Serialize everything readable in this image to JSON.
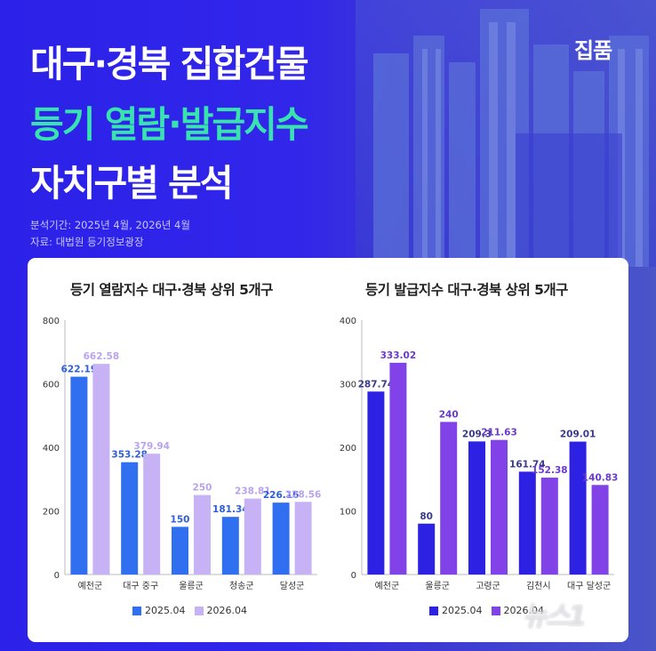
{
  "header": {
    "title_line1": "대구·경북 집합건물",
    "title_line2": "등기 열람·발급지수",
    "title_line3": "자치구별 분석",
    "brand": "집품",
    "period": "분석기간: 2025년 4월, 2026년 4월",
    "source": "자료: 대법원 등기정보광장",
    "watermark": "뉴스1"
  },
  "colors": {
    "title": "#ffffff",
    "title_accent": "#39e3b0",
    "left_2025": "#2f6ff0",
    "left_2026": "#c7b2f5",
    "right_2025": "#2d22e3",
    "right_2026": "#8142e8"
  },
  "chart_data": [
    {
      "type": "bar",
      "title": "등기 열람지수 대구·경북 상위 5개구",
      "categories": [
        "예천군",
        "대구 중구",
        "울릉군",
        "청송군",
        "달성군"
      ],
      "series": [
        {
          "name": "2025.04",
          "values": [
            622.19,
            353.28,
            150,
            181.34,
            226.16
          ],
          "labels": [
            "622.19",
            "353.28",
            "150",
            "181.34",
            "226.16"
          ]
        },
        {
          "name": "2026.04",
          "values": [
            662.58,
            379.94,
            250,
            238.81,
            228.56
          ],
          "labels": [
            "662.58",
            "379.94",
            "250",
            "238.81",
            "228.56"
          ]
        }
      ],
      "ylim": [
        0,
        800
      ],
      "yticks": [
        "0",
        "200",
        "400",
        "600",
        "800"
      ],
      "grid": false,
      "legend": "bottom"
    },
    {
      "type": "bar",
      "title": "등기 발급지수 대구·경북 상위 5개구",
      "categories": [
        "예천군",
        "울릉군",
        "고령군",
        "김천시",
        "대구 달성군"
      ],
      "series": [
        {
          "name": "2025.04",
          "values": [
            287.74,
            80,
            209.3,
            161.74,
            209.01
          ],
          "labels": [
            "287.74",
            "80",
            "209.3",
            "161.74",
            "209.01"
          ]
        },
        {
          "name": "2026.04",
          "values": [
            333.02,
            240,
            211.63,
            152.38,
            140.83
          ],
          "labels": [
            "333.02",
            "240",
            "211.63",
            "152.38",
            "140.83"
          ]
        }
      ],
      "ylim": [
        0,
        400
      ],
      "yticks": [
        "0",
        "100",
        "200",
        "300",
        "400"
      ],
      "grid": false,
      "legend": "bottom"
    }
  ]
}
